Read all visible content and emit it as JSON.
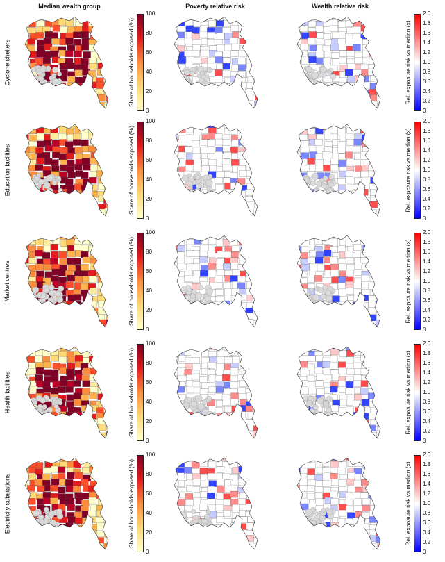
{
  "column_titles": [
    "Median wealth group",
    "Poverty relative risk",
    "Wealth relative risk"
  ],
  "row_labels": [
    "Cyclone shelters",
    "Education facilities",
    "Market centres",
    "Health facilities",
    "Electricity substations"
  ],
  "share_colorbar": {
    "title": "Share of households exposed (%)",
    "ticks": [
      "100",
      "80",
      "60",
      "40",
      "20",
      "0"
    ],
    "colors": [
      "#ffffcc",
      "#fed976",
      "#fd8d3c",
      "#e31a1c",
      "#800026"
    ]
  },
  "risk_colorbar": {
    "title": "Rel. exposure risk vs median (x)",
    "ticks": [
      "2.0",
      "1.8",
      "1.6",
      "1.4",
      "1.2",
      "1.0",
      "0.8",
      "0.6",
      "0.4",
      "0.2",
      "0"
    ],
    "colors": [
      "#0000ff",
      "#ffffff",
      "#ff0000"
    ]
  }
}
